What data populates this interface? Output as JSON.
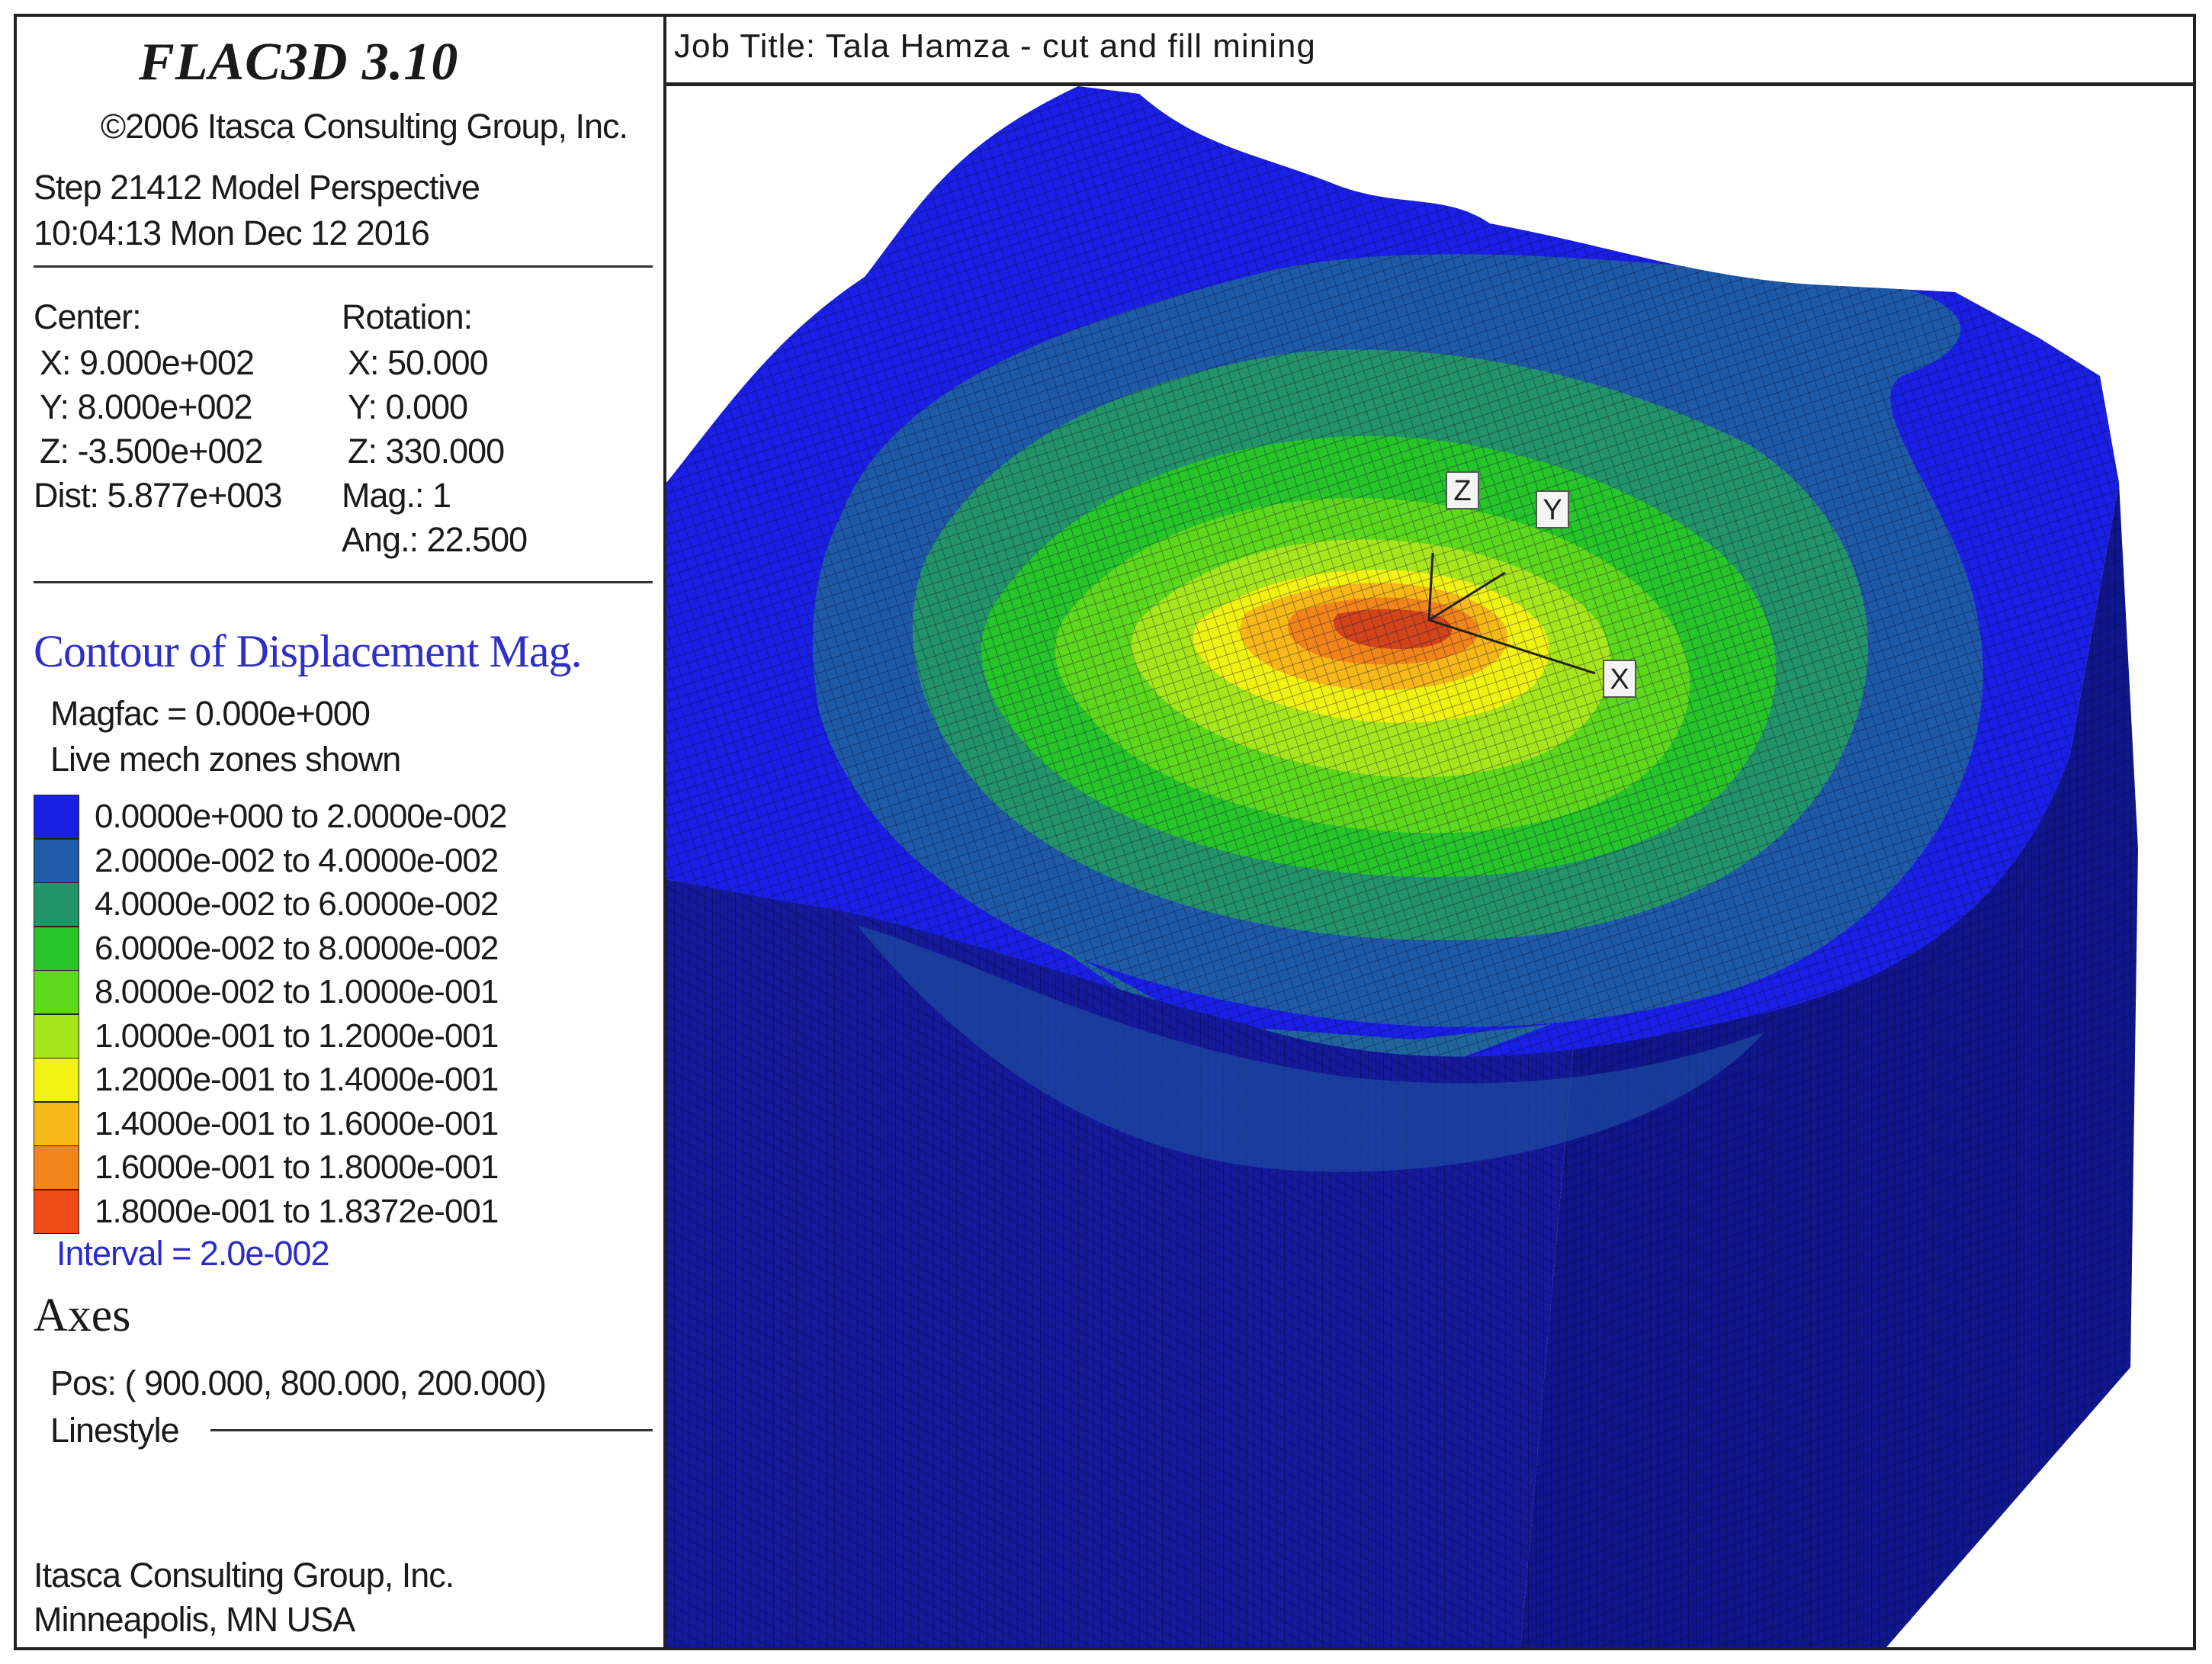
{
  "sidebar": {
    "brand": "FLAC3D 3.10",
    "copyright": "©2006 Itasca Consulting Group, Inc.",
    "step": "Step 21412  Model Perspective",
    "datetime": "10:04:13 Mon Dec 12 2016",
    "view": {
      "center_label": "Center:",
      "center_x": "X: 9.000e+002",
      "center_y": "Y: 8.000e+002",
      "center_z": "Z: -3.500e+002",
      "dist": "Dist: 5.877e+003",
      "rotation_label": "Rotation:",
      "rot_x": "X:  50.000",
      "rot_y": "Y:   0.000",
      "rot_z": "Z: 330.000",
      "mag": "Mag.:        1",
      "ang": "Ang.:  22.500"
    },
    "contour": {
      "title": "Contour of Displacement Mag.",
      "magfac": "Magfac =  0.000e+000",
      "zones": "Live mech zones shown",
      "interval": "Interval =  2.0e-002",
      "legend": [
        {
          "label": "0.0000e+000 to  2.0000e-002",
          "color": "#1a1fe6"
        },
        {
          "label": "2.0000e-002 to  4.0000e-002",
          "color": "#1f5aa8"
        },
        {
          "label": "4.0000e-002 to  6.0000e-002",
          "color": "#23946a"
        },
        {
          "label": "6.0000e-002 to  8.0000e-002",
          "color": "#27c42a"
        },
        {
          "label": "8.0000e-002 to  1.0000e-001",
          "color": "#5ed81c"
        },
        {
          "label": "1.0000e-001 to  1.2000e-001",
          "color": "#a8e61c"
        },
        {
          "label": "1.2000e-001 to  1.4000e-001",
          "color": "#f2f212"
        },
        {
          "label": "1.4000e-001 to  1.6000e-001",
          "color": "#f7b818"
        },
        {
          "label": "1.6000e-001 to  1.8000e-001",
          "color": "#f2851a"
        },
        {
          "label": "1.8000e-001 to  1.8372e-001",
          "color": "#ee4a18"
        }
      ]
    },
    "axes": {
      "heading": "Axes",
      "pos": "Pos: ( 900.000, 800.000, 200.000)",
      "linestyle": "Linestyle"
    },
    "footer_company": "Itasca Consulting Group, Inc.",
    "footer_location": "Minneapolis, MN  USA"
  },
  "viewport": {
    "job_title": "Job Title: Tala Hamza - cut and fill mining",
    "axis_labels": {
      "z": "Z",
      "y": "Y",
      "x": "X"
    }
  }
}
